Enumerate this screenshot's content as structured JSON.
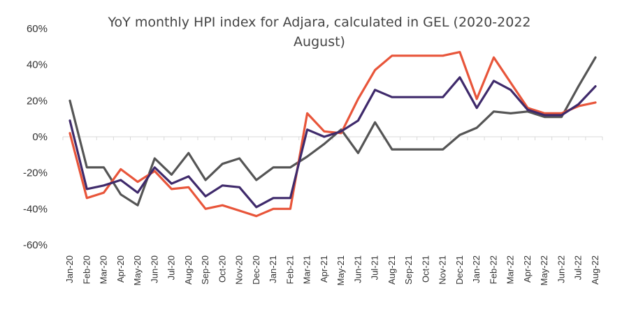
{
  "chart_data": {
    "type": "line",
    "title": "YoY monthly HPI index for Adjara, calculated in GEL (2020-2022 August)",
    "title_lines": [
      "YoY monthly HPI index for Adjara, calculated in GEL (2020-2022",
      "August)"
    ],
    "xlabel": "",
    "ylabel": "",
    "ylim": [
      -60,
      60
    ],
    "yticks": [
      60,
      40,
      20,
      0,
      -20,
      -40,
      -60
    ],
    "ytick_labels": [
      "60%",
      "40%",
      "20%",
      "0%",
      "-20%",
      "-40%",
      "-60%"
    ],
    "grid": false,
    "legend": "none",
    "categories": [
      "Jan-20",
      "Feb-20",
      "Mar-20",
      "Apr-20",
      "May-20",
      "Jun-20",
      "Jul-20",
      "Aug-20",
      "Sep-20",
      "Oct-20",
      "Nov-20",
      "Dec-20",
      "Jan-21",
      "Feb-21",
      "Mar-21",
      "Apr-21",
      "May-21",
      "Jun-21",
      "Jul-21",
      "Aug-21",
      "Sep-21",
      "Oct-21",
      "Nov-21",
      "Dec-21",
      "Jan-22",
      "Feb-22",
      "Mar-22",
      "Apr-22",
      "May-22",
      "Jun-22",
      "Jul-22",
      "Aug-22"
    ],
    "series": [
      {
        "color": "#E8553A",
        "values": [
          2,
          -34,
          -31,
          -18,
          -25,
          -19,
          -29,
          -28,
          -40,
          -38,
          -41,
          -44,
          -40,
          -40,
          13,
          3,
          2,
          21,
          37,
          45,
          45,
          45,
          45,
          47,
          21,
          44,
          30,
          16,
          13,
          13,
          17,
          19
        ]
      },
      {
        "color": "#3F2A6B",
        "values": [
          9,
          -29,
          -27,
          -24,
          -31,
          -17,
          -26,
          -22,
          -33,
          -27,
          -28,
          -39,
          -34,
          -34,
          4,
          0,
          3,
          9,
          26,
          22,
          22,
          22,
          22,
          33,
          16,
          31,
          26,
          15,
          12,
          12,
          18,
          28
        ]
      },
      {
        "color": "#555555",
        "values": [
          20,
          -17,
          -17,
          -32,
          -38,
          -12,
          -21,
          -9,
          -24,
          -15,
          -12,
          -24,
          -17,
          -17,
          -11,
          -4,
          4,
          -9,
          8,
          -7,
          -7,
          -7,
          -7,
          1,
          5,
          14,
          13,
          14,
          11,
          11,
          28,
          44
        ]
      }
    ]
  }
}
